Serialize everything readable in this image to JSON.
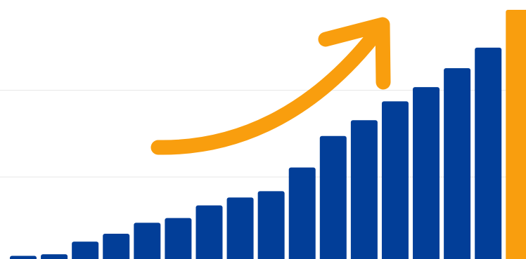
{
  "chart_data": {
    "type": "bar",
    "values": [
      0.2,
      0.3,
      1.1,
      1.6,
      2.3,
      2.6,
      3.4,
      3.9,
      4.3,
      5.8,
      7.8,
      8.8,
      10.0,
      10.9,
      12.1,
      13.4,
      15.8
    ],
    "highlight_index": 16,
    "ylim": [
      0,
      15.8
    ],
    "grid": true,
    "gridlines": [
      5.2,
      10.7
    ],
    "legend": "none",
    "annotation": "upward-trend-arrow"
  },
  "colors": {
    "background": "#ffffff",
    "bar": "#023e98",
    "highlight": "#f99e0e",
    "arrow": "#f99e0e",
    "grid": "#e6e6e6"
  }
}
